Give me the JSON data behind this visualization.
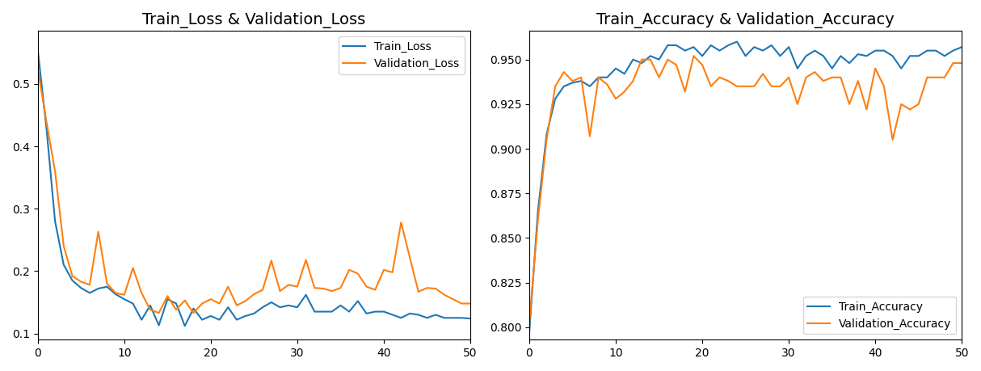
{
  "title_loss": "Train_Loss & Validation_Loss",
  "title_acc": "Train_Accuracy & Validation_Accuracy",
  "train_loss": [
    0.555,
    0.43,
    0.28,
    0.21,
    0.185,
    0.173,
    0.165,
    0.172,
    0.175,
    0.163,
    0.155,
    0.148,
    0.122,
    0.145,
    0.113,
    0.155,
    0.148,
    0.112,
    0.14,
    0.122,
    0.128,
    0.122,
    0.142,
    0.122,
    0.128,
    0.132,
    0.142,
    0.15,
    0.142,
    0.145,
    0.142,
    0.162,
    0.135,
    0.135,
    0.135,
    0.145,
    0.135,
    0.152,
    0.132,
    0.135,
    0.135,
    0.13,
    0.125,
    0.132,
    0.13,
    0.125,
    0.13,
    0.125,
    0.125,
    0.125,
    0.124
  ],
  "val_loss": [
    0.525,
    0.44,
    0.36,
    0.24,
    0.192,
    0.183,
    0.178,
    0.263,
    0.18,
    0.165,
    0.162,
    0.205,
    0.165,
    0.138,
    0.133,
    0.16,
    0.138,
    0.153,
    0.133,
    0.148,
    0.155,
    0.148,
    0.175,
    0.145,
    0.152,
    0.163,
    0.17,
    0.217,
    0.168,
    0.178,
    0.175,
    0.218,
    0.173,
    0.172,
    0.168,
    0.173,
    0.202,
    0.196,
    0.175,
    0.17,
    0.202,
    0.198,
    0.278,
    0.222,
    0.167,
    0.173,
    0.172,
    0.162,
    0.155,
    0.148,
    0.148
  ],
  "train_acc": [
    0.797,
    0.865,
    0.908,
    0.928,
    0.935,
    0.937,
    0.938,
    0.935,
    0.94,
    0.94,
    0.945,
    0.942,
    0.95,
    0.948,
    0.952,
    0.95,
    0.958,
    0.958,
    0.955,
    0.957,
    0.952,
    0.958,
    0.955,
    0.958,
    0.96,
    0.952,
    0.957,
    0.955,
    0.958,
    0.952,
    0.957,
    0.945,
    0.952,
    0.955,
    0.952,
    0.945,
    0.952,
    0.948,
    0.953,
    0.952,
    0.955,
    0.955,
    0.952,
    0.945,
    0.952,
    0.952,
    0.955,
    0.955,
    0.952,
    0.955,
    0.957
  ],
  "val_acc": [
    0.802,
    0.86,
    0.905,
    0.935,
    0.943,
    0.938,
    0.94,
    0.907,
    0.94,
    0.936,
    0.928,
    0.932,
    0.938,
    0.95,
    0.95,
    0.94,
    0.95,
    0.947,
    0.932,
    0.952,
    0.947,
    0.935,
    0.94,
    0.938,
    0.935,
    0.935,
    0.935,
    0.942,
    0.935,
    0.935,
    0.94,
    0.925,
    0.94,
    0.943,
    0.938,
    0.94,
    0.94,
    0.925,
    0.938,
    0.922,
    0.945,
    0.935,
    0.905,
    0.925,
    0.922,
    0.925,
    0.94,
    0.94,
    0.94,
    0.948,
    0.948
  ],
  "color_blue": "#1f77b4",
  "color_orange": "#ff7f0e",
  "legend_loss": [
    "Train_Loss",
    "Validation_Loss"
  ],
  "legend_acc": [
    "Train_Accuracy",
    "Validation_Accuracy"
  ],
  "loss_ylim": [
    0.09,
    0.585
  ],
  "acc_ylim": [
    0.793,
    0.966
  ],
  "acc_yticks": [
    0.8,
    0.825,
    0.85,
    0.875,
    0.9,
    0.925,
    0.95
  ],
  "loss_yticks": [
    0.1,
    0.2,
    0.3,
    0.4,
    0.5
  ],
  "xlim": [
    0,
    50
  ],
  "xticks": [
    0,
    10,
    20,
    30,
    40,
    50
  ]
}
